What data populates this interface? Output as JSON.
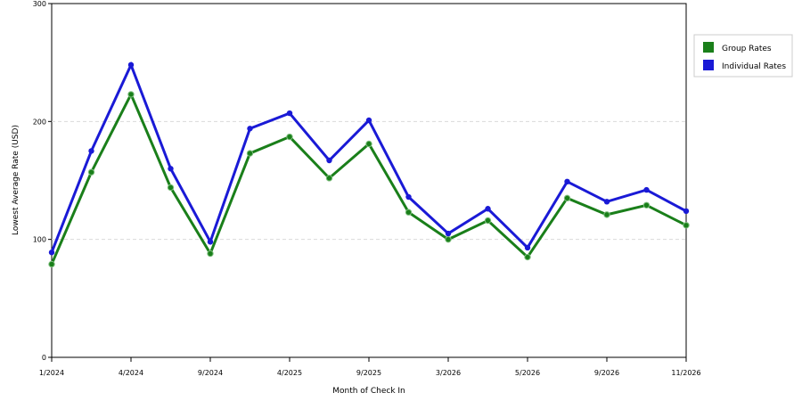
{
  "chart_data": {
    "type": "line",
    "title": "",
    "xlabel": "Month of Check In",
    "ylabel": "Lowest Average Rate (USD)",
    "ylim": [
      0,
      300
    ],
    "yticks": [
      0,
      100,
      200,
      300
    ],
    "grid": true,
    "legend_position": "top-right",
    "x_tick_labels": [
      "1/2024",
      "4/2024",
      "9/2024",
      "4/2025",
      "9/2025",
      "3/2026",
      "5/2026",
      "9/2026",
      "11/2026"
    ],
    "series": [
      {
        "name": "Group Rates",
        "color": "#1a7f1a",
        "values": [
          79,
          157,
          223,
          144,
          88,
          173,
          187,
          152,
          181,
          123,
          100,
          116,
          85,
          135,
          121,
          129,
          112
        ]
      },
      {
        "name": "Individual Rates",
        "color": "#1a1ad6",
        "values": [
          89,
          175,
          248,
          160,
          98,
          194,
          207,
          167,
          201,
          136,
          105,
          126,
          93,
          149,
          132,
          142,
          124
        ]
      }
    ]
  }
}
